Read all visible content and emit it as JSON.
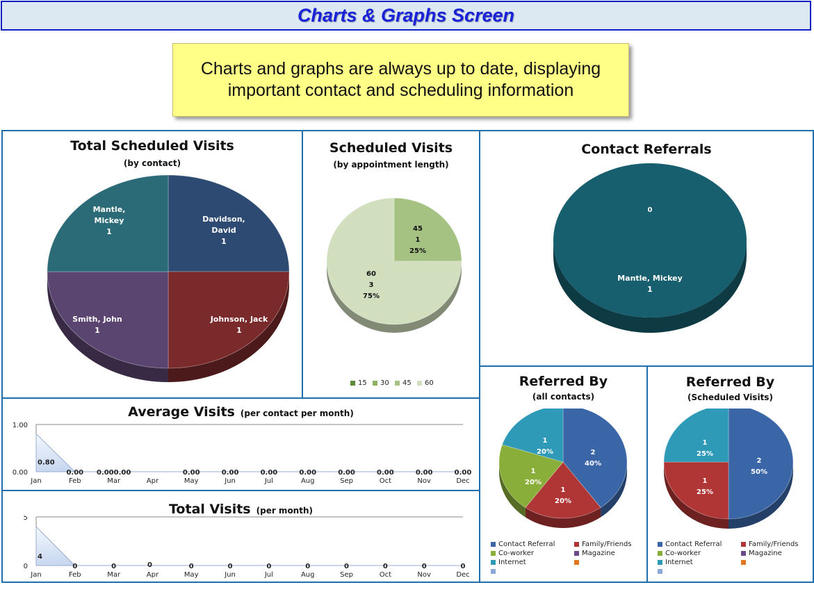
{
  "header": {
    "title": "Charts & Graphs Screen"
  },
  "callout": {
    "line1": "Charts and graphs are always up to date, displaying",
    "line2": "important contact and scheduling information"
  },
  "colors": {
    "accent": "#1f6fae",
    "title_blue": "#1a22d8",
    "callout_bg": "#ffff88"
  },
  "chart_data": [
    {
      "id": "total_scheduled",
      "type": "pie",
      "title": "Total Scheduled Visits",
      "subtitle": "(by contact)",
      "slices": [
        {
          "label": "Davidson, David",
          "value": 1,
          "color": "#2c4a72",
          "label_lines": [
            "Davidson,",
            "David",
            "1"
          ]
        },
        {
          "label": "Johnson, Jack",
          "value": 1,
          "color": "#7a2a2a",
          "label_lines": [
            "Johnson, Jack",
            "1"
          ]
        },
        {
          "label": "Smith, John",
          "value": 1,
          "color": "#5a4470",
          "label_lines": [
            "Smith, John",
            "1"
          ]
        },
        {
          "label": "Mantle, Mickey",
          "value": 1,
          "color": "#2b6b78",
          "label_lines": [
            "Mantle,",
            "Mickey",
            "1"
          ]
        }
      ]
    },
    {
      "id": "scheduled_visits",
      "type": "pie",
      "title": "Scheduled Visits",
      "subtitle": "(by appointment length)",
      "slices": [
        {
          "label": "45",
          "value": 1,
          "percent": "25%",
          "color": "#a6c282",
          "label_lines": [
            "45",
            "1",
            "25%"
          ]
        },
        {
          "label": "60",
          "value": 3,
          "percent": "75%",
          "color": "#d1dfbf",
          "label_lines": [
            "60",
            "3",
            "75%"
          ]
        }
      ],
      "legend": [
        {
          "label": "15",
          "color": "#5f8a3c"
        },
        {
          "label": "30",
          "color": "#8eb060"
        },
        {
          "label": "45",
          "color": "#a6c282"
        },
        {
          "label": "60",
          "color": "#d1dfbf"
        }
      ]
    },
    {
      "id": "contact_referrals",
      "type": "pie",
      "title": "Contact Referrals",
      "slices": [
        {
          "label": "Mantle, Mickey",
          "value": 1,
          "color": "#175e6e",
          "label_lines": [
            "Mantle, Mickey",
            "1"
          ]
        }
      ],
      "extra_label": "0"
    },
    {
      "id": "average_visits",
      "type": "area",
      "title": "Average Visits",
      "subtitle": "(per  contact per month)",
      "categories": [
        "Jan",
        "Feb",
        "Mar",
        "Apr",
        "May",
        "Jun",
        "Jul",
        "Aug",
        "Sep",
        "Oct",
        "Nov",
        "Dec"
      ],
      "values": [
        0.8,
        0,
        0,
        0,
        0,
        0,
        0,
        0,
        0,
        0,
        0,
        0
      ],
      "data_labels": [
        "0.80",
        "0.00",
        "0.000.00",
        "",
        "0.00",
        "0.00",
        "0.00",
        "0.00",
        "0.00",
        "0.00",
        "0.00",
        "0.00"
      ],
      "y_ticks": [
        "0.00",
        "1.00"
      ],
      "ylim": [
        0,
        1
      ]
    },
    {
      "id": "total_visits",
      "type": "area",
      "title": "Total Visits",
      "subtitle": "(per month)",
      "categories": [
        "Jan",
        "Feb",
        "Mar",
        "Apr",
        "May",
        "Jun",
        "Jul",
        "Aug",
        "Sep",
        "Oct",
        "Nov",
        "Dec"
      ],
      "values": [
        4,
        0,
        0,
        0,
        0,
        0,
        0,
        0,
        0,
        0,
        0,
        0
      ],
      "data_labels": [
        "4",
        "0",
        "0",
        "0",
        "0",
        "0",
        "0",
        "0",
        "0",
        "0",
        "0",
        "0"
      ],
      "y_ticks": [
        "0",
        "5"
      ],
      "ylim": [
        0,
        5
      ]
    },
    {
      "id": "referred_all",
      "type": "pie",
      "title": "Referred By",
      "subtitle": "(all contacts)",
      "slices": [
        {
          "label": "Contact Referral",
          "value": 2,
          "percent": "40%",
          "color": "#3a66a8",
          "label_lines": [
            "2",
            "40%"
          ]
        },
        {
          "label": "Family/Friends",
          "value": 1,
          "percent": "20%",
          "color": "#b03535",
          "label_lines": [
            "1",
            "20%"
          ]
        },
        {
          "label": "Co-worker",
          "value": 1,
          "percent": "20%",
          "color": "#8aae3a",
          "label_lines": [
            "1",
            "20%"
          ]
        },
        {
          "label": "Internet",
          "value": 1,
          "percent": "20%",
          "color": "#2f9ab8",
          "label_lines": [
            "1",
            "20%"
          ]
        }
      ],
      "legend": [
        {
          "label": "Contact Referral",
          "color": "#3a66a8"
        },
        {
          "label": "Family/Friends",
          "color": "#b03535"
        },
        {
          "label": "Co-worker",
          "color": "#8aae3a"
        },
        {
          "label": "Magazine",
          "color": "#6a4a8a"
        },
        {
          "label": "Internet",
          "color": "#2f9ab8"
        },
        {
          "label": "",
          "color": "#e07820"
        },
        {
          "label": "",
          "color": "#8aa8d8"
        }
      ]
    },
    {
      "id": "referred_scheduled",
      "type": "pie",
      "title": "Referred By",
      "subtitle": "(Scheduled Visits)",
      "slices": [
        {
          "label": "Contact Referral",
          "value": 2,
          "percent": "50%",
          "color": "#3a66a8",
          "label_lines": [
            "2",
            "50%"
          ]
        },
        {
          "label": "Family/Friends",
          "value": 1,
          "percent": "25%",
          "color": "#b03535",
          "label_lines": [
            "1",
            "25%"
          ]
        },
        {
          "label": "Internet",
          "value": 1,
          "percent": "25%",
          "color": "#2f9ab8",
          "label_lines": [
            "1",
            "25%"
          ]
        }
      ],
      "legend": [
        {
          "label": "Contact Referral",
          "color": "#3a66a8"
        },
        {
          "label": "Family/Friends",
          "color": "#b03535"
        },
        {
          "label": "Co-worker",
          "color": "#8aae3a"
        },
        {
          "label": "Magazine",
          "color": "#6a4a8a"
        },
        {
          "label": "Internet",
          "color": "#2f9ab8"
        },
        {
          "label": "",
          "color": "#e07820"
        },
        {
          "label": "",
          "color": "#8aa8d8"
        }
      ]
    }
  ]
}
